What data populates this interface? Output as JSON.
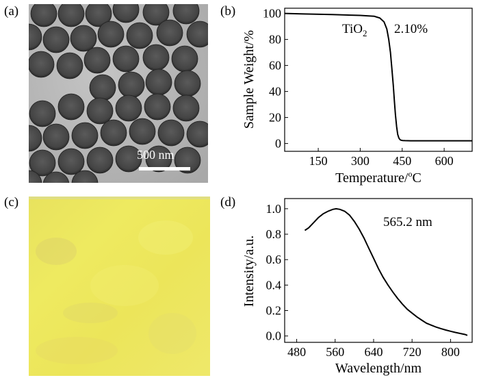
{
  "panels": {
    "a": {
      "label": "(a)",
      "scale_bar": "500 nm"
    },
    "b": {
      "label": "(b)"
    },
    "c": {
      "label": "(c)"
    },
    "d": {
      "label": "(d)"
    }
  },
  "chart_data": [
    {
      "type": "line",
      "panel": "(b)",
      "xlabel_main": "Temperature/",
      "xlabel_sup": "o",
      "xlabel_unit": "C",
      "ylabel": "Sample Weight/%",
      "xlim": [
        30,
        700
      ],
      "ylim": [
        -6,
        104
      ],
      "xticks": [
        150,
        300,
        450,
        600
      ],
      "yticks": [
        0,
        20,
        40,
        60,
        80,
        100
      ],
      "annotation_material": "TiO",
      "annotation_subscript": "2",
      "annotation_value": "2.10%",
      "x": [
        30,
        100,
        200,
        300,
        350,
        370,
        385,
        395,
        402,
        408,
        413,
        418,
        422,
        426,
        430,
        434,
        438,
        442,
        446,
        452,
        460,
        480,
        550,
        650,
        700
      ],
      "y": [
        100,
        99.6,
        99.1,
        98.5,
        97.8,
        96.5,
        93.5,
        88,
        80,
        70,
        58,
        45,
        33,
        22,
        13,
        7,
        4.2,
        3,
        2.5,
        2.3,
        2.2,
        2.1,
        2.1,
        2.1,
        2.1
      ]
    },
    {
      "type": "line",
      "panel": "(d)",
      "xlabel": "Wavelength/nm",
      "ylabel": "Intensity/a.u.",
      "xlim": [
        455,
        845
      ],
      "ylim": [
        -0.05,
        1.08
      ],
      "xticks": [
        480,
        560,
        640,
        720,
        800
      ],
      "yticks": [
        0.0,
        0.2,
        0.4,
        0.6,
        0.8,
        1.0
      ],
      "yticklabels": [
        "0.0",
        "0.2",
        "0.4",
        "0.6",
        "0.8",
        "1.0"
      ],
      "annotation": "565.2 nm",
      "x": [
        497,
        505,
        515,
        525,
        535,
        545,
        555,
        562,
        570,
        580,
        590,
        600,
        610,
        620,
        630,
        640,
        650,
        660,
        670,
        680,
        690,
        700,
        710,
        720,
        730,
        740,
        750,
        760,
        770,
        780,
        790,
        800,
        810,
        820,
        830,
        835
      ],
      "y": [
        0.83,
        0.85,
        0.89,
        0.93,
        0.96,
        0.98,
        0.995,
        1.0,
        0.995,
        0.98,
        0.95,
        0.9,
        0.84,
        0.77,
        0.69,
        0.61,
        0.53,
        0.46,
        0.4,
        0.345,
        0.295,
        0.25,
        0.21,
        0.18,
        0.15,
        0.125,
        0.1,
        0.085,
        0.07,
        0.058,
        0.047,
        0.037,
        0.028,
        0.02,
        0.012,
        0.005
      ]
    }
  ]
}
